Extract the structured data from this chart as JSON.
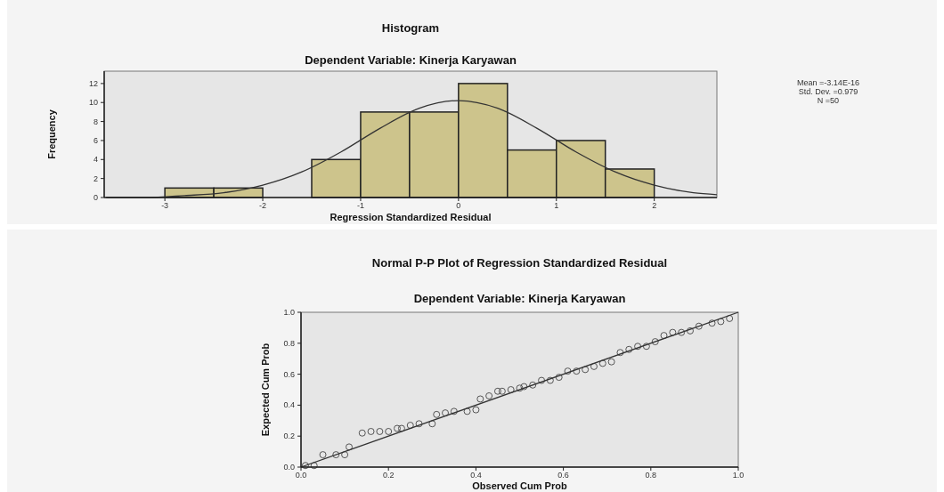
{
  "chart_data": [
    {
      "type": "histogram",
      "title": "Histogram",
      "subtitle": "Dependent Variable: Kinerja Karyawan",
      "xlabel": "Regression Standardized Residual",
      "ylabel": "Frequency",
      "annotations": [
        "Mean =-3.14E-16\nStd. Dev. =0.979\nN =50"
      ],
      "bins": [
        -3,
        -2.5,
        -2,
        -1.5,
        -1,
        -0.5,
        0,
        0.5,
        1,
        1.5,
        2
      ],
      "series": [
        {
          "color": "#cdc48c",
          "values": [
            1,
            1,
            0,
            4,
            9,
            9,
            12,
            5,
            6,
            3
          ]
        },
        {
          "type": "line",
          "color": "#333333",
          "x": [
            -3.6,
            -3.2,
            -2.8,
            -2.4,
            -2.0,
            -1.6,
            -1.2,
            -0.8,
            -0.4,
            0,
            0.4,
            0.8,
            1.2,
            1.6,
            2.0,
            2.4,
            2.64
          ],
          "values": [
            0.0,
            0.0,
            0.2,
            0.5,
            1.3,
            2.7,
            4.8,
            7.3,
            9.4,
            10.2,
            9.4,
            7.3,
            4.8,
            2.7,
            1.3,
            0.5,
            0.3
          ]
        }
      ],
      "xlim": [
        -3.62,
        2.64
      ],
      "ylim": [
        0,
        13.3
      ],
      "xticks": [
        -3,
        -2,
        -1,
        0,
        1,
        2
      ],
      "yticks": [
        0,
        2,
        4,
        6,
        8,
        10,
        12
      ],
      "grid": false
    },
    {
      "type": "scatter",
      "title": "Normal P-P Plot of Regression Standardized Residual",
      "subtitle": "Dependent Variable: Kinerja Karyawan",
      "xlabel": "Observed Cum Prob",
      "ylabel": "Expected Cum Prob",
      "series": [
        {
          "marker": "circle",
          "color": "#555555",
          "x": [
            0.01,
            0.03,
            0.05,
            0.08,
            0.1,
            0.11,
            0.14,
            0.16,
            0.18,
            0.2,
            0.22,
            0.23,
            0.25,
            0.27,
            0.3,
            0.31,
            0.33,
            0.35,
            0.38,
            0.4,
            0.41,
            0.43,
            0.45,
            0.46,
            0.48,
            0.5,
            0.51,
            0.53,
            0.55,
            0.57,
            0.59,
            0.61,
            0.63,
            0.65,
            0.67,
            0.69,
            0.71,
            0.73,
            0.75,
            0.77,
            0.79,
            0.81,
            0.83,
            0.85,
            0.87,
            0.89,
            0.91,
            0.94,
            0.96,
            0.98
          ],
          "values": [
            0.01,
            0.01,
            0.08,
            0.08,
            0.08,
            0.13,
            0.22,
            0.23,
            0.23,
            0.23,
            0.25,
            0.25,
            0.27,
            0.28,
            0.28,
            0.34,
            0.35,
            0.36,
            0.36,
            0.37,
            0.44,
            0.46,
            0.49,
            0.49,
            0.5,
            0.51,
            0.52,
            0.53,
            0.56,
            0.56,
            0.58,
            0.62,
            0.62,
            0.63,
            0.65,
            0.67,
            0.68,
            0.74,
            0.76,
            0.78,
            0.78,
            0.81,
            0.85,
            0.87,
            0.87,
            0.88,
            0.91,
            0.93,
            0.94,
            0.96
          ]
        },
        {
          "type": "line",
          "marker": "none",
          "color": "#333333",
          "x": [
            0,
            1
          ],
          "values": [
            0,
            1
          ]
        }
      ],
      "xlim": [
        0,
        1
      ],
      "ylim": [
        0,
        1
      ],
      "xticks": [
        {
          "value": 0,
          "label": "0.0"
        },
        {
          "value": 0.2,
          "label": "0.2"
        },
        {
          "value": 0.4,
          "label": "0.4"
        },
        {
          "value": 0.6,
          "label": "0.6"
        },
        {
          "value": 0.8,
          "label": "0.8"
        },
        {
          "value": 1,
          "label": "1.0"
        }
      ],
      "yticks": [
        {
          "value": 0,
          "label": "0.0"
        },
        {
          "value": 0.2,
          "label": "0.2"
        },
        {
          "value": 0.4,
          "label": "0.4"
        },
        {
          "value": 0.6,
          "label": "0.6"
        },
        {
          "value": 0.8,
          "label": "0.8"
        },
        {
          "value": 1,
          "label": "1.0"
        }
      ],
      "grid": false
    }
  ]
}
